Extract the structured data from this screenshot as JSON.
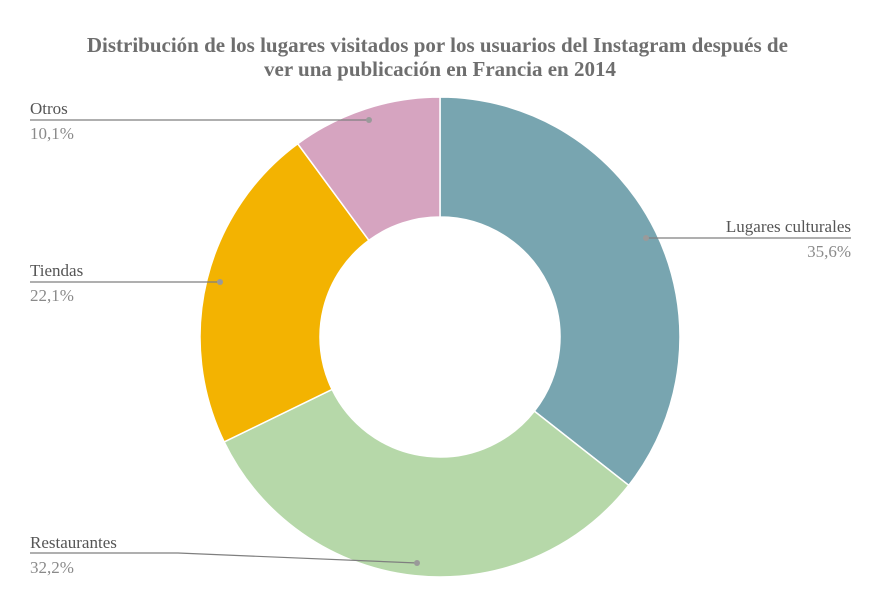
{
  "chart_data": {
    "type": "pie",
    "variant": "donut",
    "title": "Distribución de los lugares visitados por los usuarios del Instagram después de ver una publicación en Francia en 2014",
    "title_lines": [
      "Distribución de los lugares visitados por los usuarios del Instagram después de",
      "ver una publicación en Francia en 2014"
    ],
    "slices": [
      {
        "label": "Lugares culturales",
        "value": 35.6,
        "display": "35,6%",
        "color": "#78a5b0"
      },
      {
        "label": "Restaurantes",
        "value": 32.2,
        "display": "32,2%",
        "color": "#b6d8a9"
      },
      {
        "label": "Tiendas",
        "value": 22.1,
        "display": "22,1%",
        "color": "#f3b301"
      },
      {
        "label": "Otros",
        "value": 10.1,
        "display": "10,1%",
        "color": "#d6a4c0"
      }
    ],
    "start_angle_deg": 0,
    "direction": "clockwise",
    "legend": "none",
    "data_labels": "outside-with-leader-lines"
  }
}
